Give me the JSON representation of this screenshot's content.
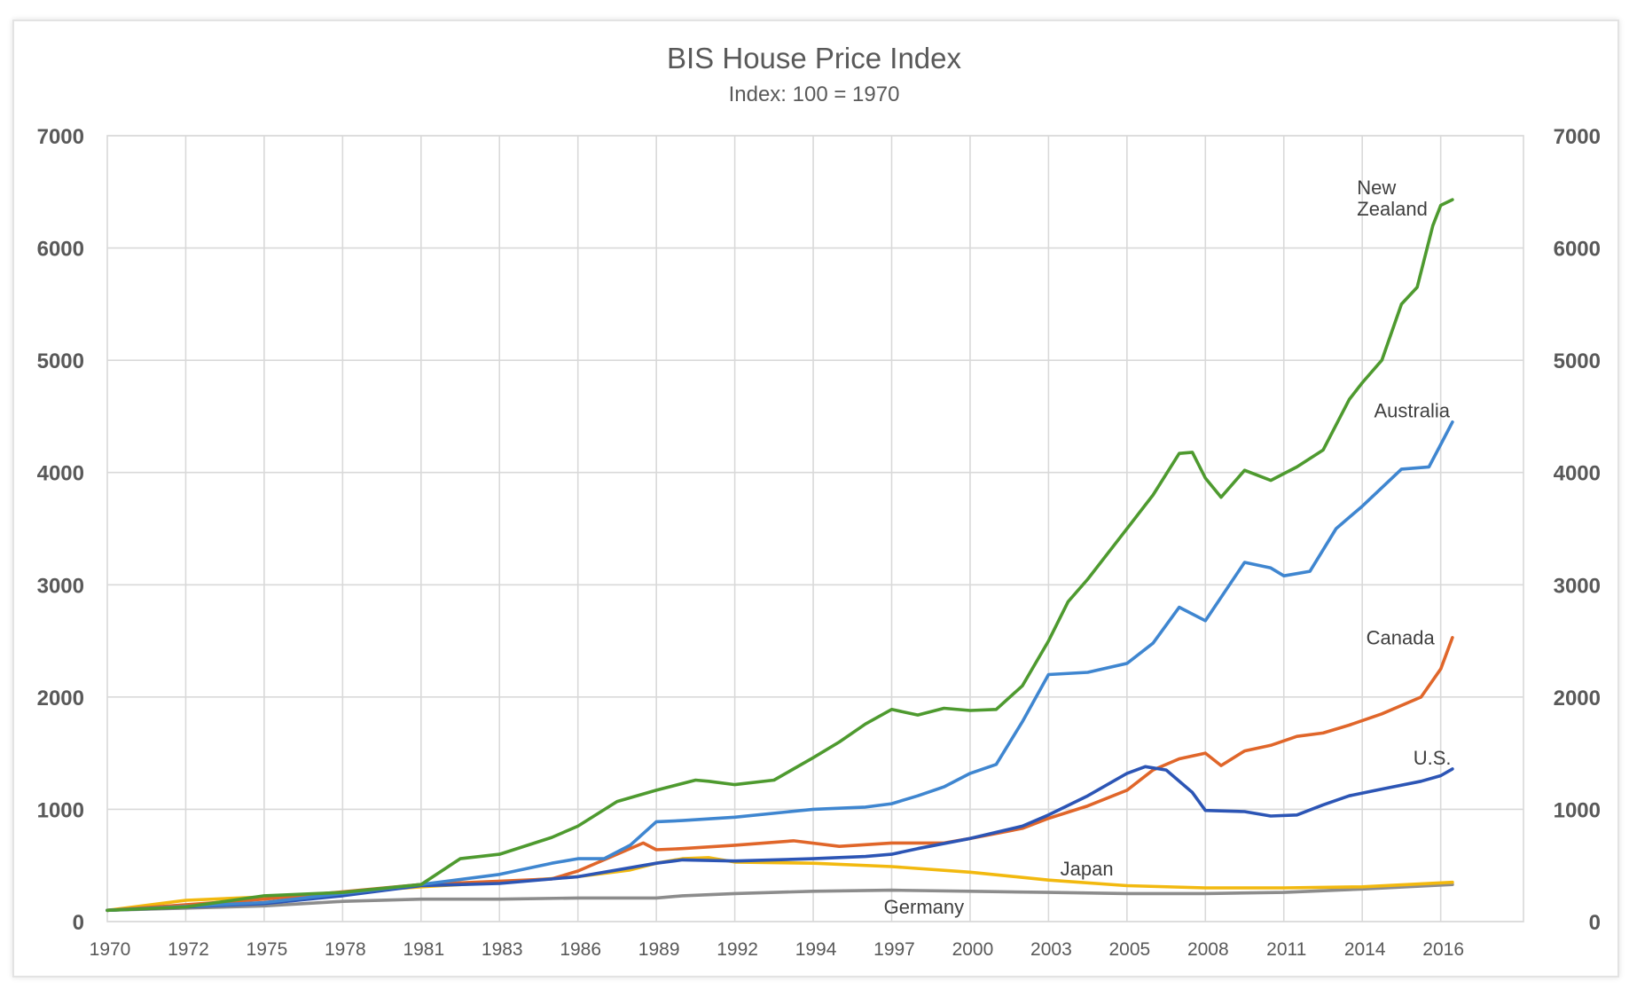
{
  "chart_data": {
    "type": "line",
    "title": "BIS House Price Index",
    "subtitle": "Index: 100 = 1970",
    "xlabel": "",
    "ylabel": "",
    "ylim": [
      0,
      7000
    ],
    "yticks": [
      "0",
      "1000",
      "2000",
      "3000",
      "4000",
      "5000",
      "6000",
      "7000"
    ],
    "ytick_values": [
      0,
      1000,
      2000,
      3000,
      4000,
      5000,
      6000,
      7000
    ],
    "secondary_y_axis": true,
    "xticks": [
      "1970",
      "1972",
      "1975",
      "1978",
      "1981",
      "1983",
      "1986",
      "1989",
      "1992",
      "1994",
      "1997",
      "2000",
      "2003",
      "2005",
      "2008",
      "2011",
      "2014",
      "2016"
    ],
    "xtick_values": [
      1970,
      1972,
      1975,
      1978,
      1981,
      1983,
      1986,
      1989,
      1992,
      1994,
      1997,
      2000,
      2003,
      2005,
      2008,
      2011,
      2014,
      2016
    ],
    "xlim": [
      1970,
      2017.0
    ],
    "grid": true,
    "legend": "inline-labels",
    "series": [
      {
        "name": "New Zealand",
        "label_lines": [
          "New",
          "Zealand"
        ],
        "color": "#4e9a2f",
        "label_anchor": [
          2013.8,
          6480
        ],
        "x": [
          1970,
          1972,
          1975,
          1978,
          1981,
          1982,
          1983,
          1985,
          1986,
          1987.5,
          1989,
          1990.5,
          1991,
          1992,
          1993,
          1994,
          1995,
          1996,
          1997,
          1998,
          1999,
          2000,
          2001,
          2002,
          2003,
          2003.5,
          2004,
          2005,
          2006,
          2007,
          2007.5,
          2008,
          2008.6,
          2009.5,
          2010.5,
          2011.5,
          2012.5,
          2013.5,
          2014,
          2014.5,
          2015,
          2015.4,
          2015.8,
          2016,
          2016.3
        ],
        "values": [
          100,
          130,
          230,
          260,
          330,
          560,
          600,
          750,
          850,
          1070,
          1170,
          1260,
          1250,
          1220,
          1260,
          1460,
          1600,
          1760,
          1890,
          1840,
          1900,
          1880,
          1890,
          2100,
          2500,
          2850,
          3050,
          3500,
          3800,
          4170,
          4180,
          3950,
          3780,
          4020,
          3930,
          4050,
          4200,
          4650,
          4800,
          5000,
          5500,
          5650,
          6200,
          6380,
          6430
        ]
      },
      {
        "name": "Australia",
        "label_lines": [
          "Australia"
        ],
        "color": "#3f86d0",
        "label_anchor": [
          2014.3,
          4490
        ],
        "x": [
          1970,
          1975,
          1981,
          1983,
          1985,
          1986,
          1987,
          1988,
          1989,
          1990,
          1992,
          1994,
          1996,
          1997,
          1998,
          1999,
          2000,
          2001,
          2002,
          2003,
          2004,
          2005,
          2006,
          2007,
          2008,
          2009.5,
          2010.5,
          2011,
          2012,
          2013,
          2014,
          2015,
          2015.7,
          2016,
          2016.3
        ],
        "values": [
          100,
          170,
          330,
          420,
          520,
          560,
          560,
          680,
          890,
          900,
          930,
          1000,
          1020,
          1050,
          1120,
          1200,
          1320,
          1400,
          1780,
          2200,
          2220,
          2300,
          2480,
          2800,
          2680,
          3200,
          3150,
          3080,
          3120,
          3500,
          3700,
          4030,
          4050,
          4250,
          4450
        ]
      },
      {
        "name": "Canada",
        "label_lines": [
          "Canada"
        ],
        "color": "#e0662a",
        "label_anchor": [
          2014.1,
          2470
        ],
        "x": [
          1970,
          1975,
          1981,
          1985,
          1986,
          1987,
          1988.5,
          1989,
          1990,
          1992,
          1993.5,
          1995,
          1997,
          1999,
          2000,
          2002,
          2003,
          2004,
          2005,
          2006,
          2007,
          2008,
          2008.6,
          2009.5,
          2010.5,
          2011.5,
          2012.5,
          2013.5,
          2014.5,
          2015.5,
          2016,
          2016.3
        ],
        "values": [
          100,
          200,
          330,
          380,
          450,
          550,
          700,
          640,
          650,
          680,
          720,
          670,
          700,
          700,
          740,
          830,
          920,
          1030,
          1170,
          1350,
          1450,
          1500,
          1390,
          1520,
          1570,
          1650,
          1680,
          1750,
          1850,
          2000,
          2250,
          2530
        ]
      },
      {
        "name": "U.S.",
        "label_lines": [
          "U.S."
        ],
        "color": "#2c55b5",
        "label_anchor": [
          2015.3,
          1400
        ],
        "x": [
          1970,
          1975,
          1978,
          1981,
          1983,
          1986,
          1989,
          1990,
          1992,
          1994,
          1996,
          1997,
          1998,
          2000,
          2002,
          2003,
          2004,
          2005,
          2005.7,
          2006.5,
          2007.5,
          2008,
          2009.5,
          2010.5,
          2011.5,
          2012.5,
          2013.5,
          2014.5,
          2015.5,
          2016,
          2016.3
        ],
        "values": [
          100,
          160,
          230,
          320,
          340,
          400,
          520,
          550,
          540,
          560,
          580,
          600,
          650,
          740,
          850,
          950,
          1120,
          1320,
          1380,
          1350,
          1150,
          990,
          980,
          940,
          950,
          1040,
          1120,
          1180,
          1250,
          1300,
          1360
        ]
      },
      {
        "name": "Japan",
        "label_lines": [
          "Japan"
        ],
        "color": "#f2b90f",
        "label_anchor": [
          2003.3,
          410
        ],
        "x": [
          1970,
          1972,
          1975,
          1978,
          1981,
          1983,
          1986,
          1988,
          1989,
          1990,
          1991,
          1992,
          1994,
          1997,
          2000,
          2003,
          2005,
          2008,
          2011,
          2014,
          2016.3
        ],
        "values": [
          100,
          190,
          220,
          260,
          310,
          350,
          400,
          460,
          520,
          560,
          570,
          530,
          520,
          490,
          440,
          370,
          320,
          300,
          300,
          310,
          350
        ]
      },
      {
        "name": "Germany",
        "label_lines": [
          "Germany"
        ],
        "color": "#8c8c8c",
        "label_anchor": [
          1996.7,
          70
        ],
        "x": [
          1970,
          1975,
          1978,
          1981,
          1983,
          1986,
          1989,
          1990,
          1992,
          1994,
          1997,
          2000,
          2003,
          2005,
          2008,
          2011,
          2014,
          2016.3
        ],
        "values": [
          100,
          140,
          180,
          200,
          200,
          210,
          210,
          230,
          250,
          270,
          280,
          270,
          260,
          250,
          250,
          260,
          290,
          330
        ]
      }
    ]
  }
}
